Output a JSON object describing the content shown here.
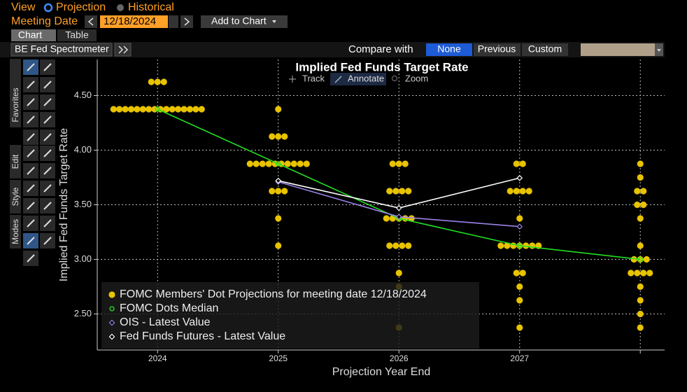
{
  "header": {
    "view_label": "View",
    "projection": "Projection",
    "historical": "Historical",
    "meeting_date_label": "Meeting Date",
    "meeting_date": "12/18/2024",
    "add_to_chart": "Add to Chart"
  },
  "tabs": [
    "Chart",
    "Table"
  ],
  "toolbar": {
    "name": "BE Fed Spectrometer",
    "compare_label": "Compare with",
    "compare_options": [
      "None",
      "Previous",
      "Custom"
    ]
  },
  "side_toolbar": [
    "Favorites",
    "Edit",
    "Style",
    "Modes"
  ],
  "chart_tools": [
    "Track",
    "Annotate",
    "Zoom"
  ],
  "chart_data": {
    "type": "dotplot",
    "title": "Implied Fed Funds Target Rate",
    "x_label": "Projection Year End",
    "y_label": "Implied Fed Funds Target Rate",
    "categories": [
      "2024",
      "2025",
      "2026",
      "2027",
      null
    ],
    "ylim": [
      2.17,
      4.83
    ],
    "yticks": [
      {
        "value": 2.5,
        "label": "2.50"
      },
      {
        "value": 3.0,
        "label": "3.00"
      },
      {
        "value": 3.5,
        "label": "3.50"
      },
      {
        "value": 4.0,
        "label": "4.00"
      },
      {
        "value": 4.5,
        "label": "4.50"
      }
    ],
    "grid": true,
    "series": [
      {
        "name": "FOMC Members' Dot Projections for meeting date 12/18/2024",
        "color": "#e8c300",
        "marker": "dot",
        "values": [
          [
            4.625,
            4.625,
            4.625,
            4.375,
            4.375,
            4.375,
            4.375,
            4.375,
            4.375,
            4.375,
            4.375,
            4.375,
            4.375,
            4.375,
            4.375,
            4.375,
            4.375,
            4.375,
            4.375
          ],
          [
            4.375,
            4.125,
            4.125,
            4.125,
            3.875,
            3.875,
            3.875,
            3.875,
            3.875,
            3.875,
            3.875,
            3.875,
            3.875,
            3.875,
            3.625,
            3.625,
            3.625,
            3.375,
            3.125
          ],
          [
            3.875,
            3.875,
            3.875,
            3.625,
            3.625,
            3.625,
            3.625,
            3.375,
            3.375,
            3.375,
            3.375,
            3.375,
            3.125,
            3.125,
            3.125,
            3.125,
            2.875,
            2.75,
            2.375
          ],
          [
            3.875,
            3.875,
            3.625,
            3.625,
            3.625,
            3.625,
            3.375,
            3.125,
            3.125,
            3.125,
            3.125,
            3.125,
            3.125,
            3.125,
            2.875,
            2.875,
            2.75,
            2.625,
            2.375
          ],
          [
            3.875,
            3.75,
            3.625,
            3.625,
            3.5,
            3.5,
            3.375,
            3.125,
            3.0,
            3.0,
            3.0,
            2.875,
            2.875,
            2.875,
            2.875,
            2.75,
            2.625,
            2.5,
            2.375
          ]
        ]
      },
      {
        "name": "FOMC Dots Median",
        "color": "#22e022",
        "marker": "circle",
        "values": [
          4.375,
          3.875,
          3.375,
          3.125,
          3.0
        ]
      },
      {
        "name": "OIS - Latest Value",
        "color": "#9b82e6",
        "marker": "diamond",
        "values": [
          null,
          3.71,
          3.39,
          3.3,
          null
        ]
      },
      {
        "name": "Fed Funds Futures - Latest Value",
        "color": "#ffffff",
        "marker": "diamond",
        "values": [
          null,
          3.72,
          3.47,
          3.745,
          null
        ]
      }
    ]
  }
}
